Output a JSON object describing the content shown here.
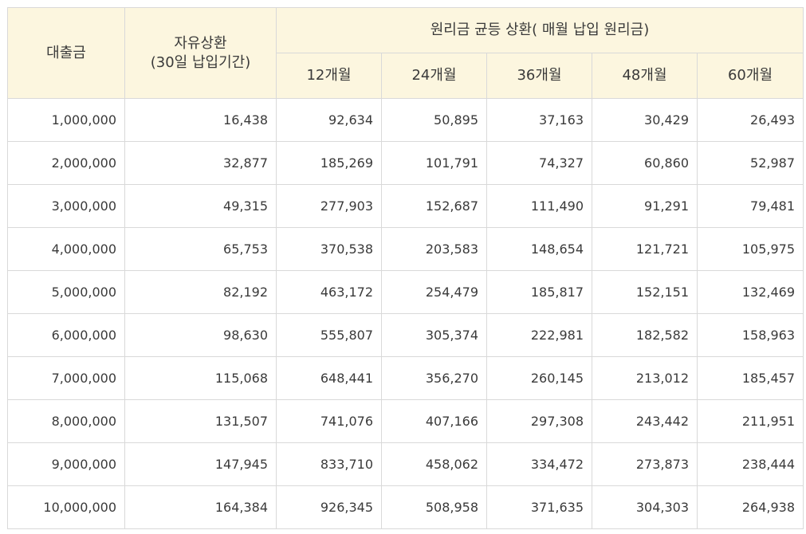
{
  "header": {
    "loan_col": "대출금",
    "free_col_line1": "자유상환",
    "free_col_line2": "(30일 납입기간)",
    "equal_group": "원리금 균등 상환( 매월 납입 원리금)",
    "months": [
      "12개월",
      "24개월",
      "36개월",
      "48개월",
      "60개월"
    ]
  },
  "rows": [
    {
      "loan": "1,000,000",
      "free": "16,438",
      "m12": "92,634",
      "m24": "50,895",
      "m36": "37,163",
      "m48": "30,429",
      "m60": "26,493"
    },
    {
      "loan": "2,000,000",
      "free": "32,877",
      "m12": "185,269",
      "m24": "101,791",
      "m36": "74,327",
      "m48": "60,860",
      "m60": "52,987"
    },
    {
      "loan": "3,000,000",
      "free": "49,315",
      "m12": "277,903",
      "m24": "152,687",
      "m36": "111,490",
      "m48": "91,291",
      "m60": "79,481"
    },
    {
      "loan": "4,000,000",
      "free": "65,753",
      "m12": "370,538",
      "m24": "203,583",
      "m36": "148,654",
      "m48": "121,721",
      "m60": "105,975"
    },
    {
      "loan": "5,000,000",
      "free": "82,192",
      "m12": "463,172",
      "m24": "254,479",
      "m36": "185,817",
      "m48": "152,151",
      "m60": "132,469"
    },
    {
      "loan": "6,000,000",
      "free": "98,630",
      "m12": "555,807",
      "m24": "305,374",
      "m36": "222,981",
      "m48": "182,582",
      "m60": "158,963"
    },
    {
      "loan": "7,000,000",
      "free": "115,068",
      "m12": "648,441",
      "m24": "356,270",
      "m36": "260,145",
      "m48": "213,012",
      "m60": "185,457"
    },
    {
      "loan": "8,000,000",
      "free": "131,507",
      "m12": "741,076",
      "m24": "407,166",
      "m36": "297,308",
      "m48": "243,442",
      "m60": "211,951"
    },
    {
      "loan": "9,000,000",
      "free": "147,945",
      "m12": "833,710",
      "m24": "458,062",
      "m36": "334,472",
      "m48": "273,873",
      "m60": "238,444"
    },
    {
      "loan": "10,000,000",
      "free": "164,384",
      "m12": "926,345",
      "m24": "508,958",
      "m36": "371,635",
      "m48": "304,303",
      "m60": "264,938"
    }
  ]
}
